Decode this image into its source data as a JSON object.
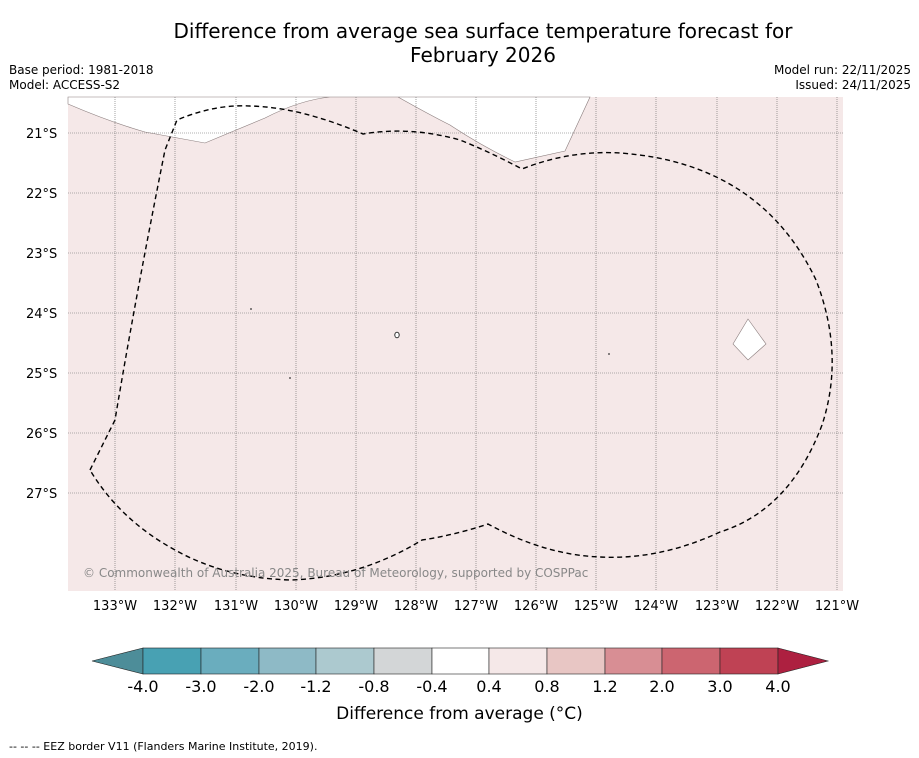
{
  "title": {
    "line1": "Difference from average sea surface temperature forecast for",
    "line2": "February 2026"
  },
  "meta": {
    "base_period": "Base period: 1981-2018",
    "model": "Model: ACCESS-S2",
    "model_run": "Model run: 22/11/2025",
    "issued": "Issued: 24/11/2025"
  },
  "map": {
    "lat_labels": [
      "21°S",
      "22°S",
      "23°S",
      "24°S",
      "25°S",
      "26°S",
      "27°S"
    ],
    "lon_labels": [
      "133°W",
      "132°W",
      "131°W",
      "130°W",
      "129°W",
      "128°W",
      "127°W",
      "126°W",
      "125°W",
      "124°W",
      "123°W",
      "122°W",
      "121°W"
    ],
    "copyright": "© Commonwealth of Australia 2025, Bureau of Meteorology, supported by COSPPac",
    "anomaly_fill_color": "#f5e8e8",
    "eez_line_color": "#000000"
  },
  "colorbar": {
    "tick_labels": [
      "-4.0",
      "-3.0",
      "-2.0",
      "-1.2",
      "-0.8",
      "-0.4",
      "0.4",
      "0.8",
      "1.2",
      "2.0",
      "3.0",
      "4.0"
    ],
    "colors": [
      "#4d8d99",
      "#48a1b3",
      "#6aadbe",
      "#8ebac6",
      "#acc9cf",
      "#d3d6d7",
      "#ffffff",
      "#f5e8e8",
      "#e8c6c4",
      "#d88e94",
      "#cc6570",
      "#bf4254",
      "#ad2040"
    ],
    "title": "Difference from average ($^\\circ$C)",
    "title_display": "Difference from average (°C)"
  },
  "footer": {
    "legend_text": "-- -- -- EEZ border V11 (Flanders Marine Institute, 2019)."
  }
}
